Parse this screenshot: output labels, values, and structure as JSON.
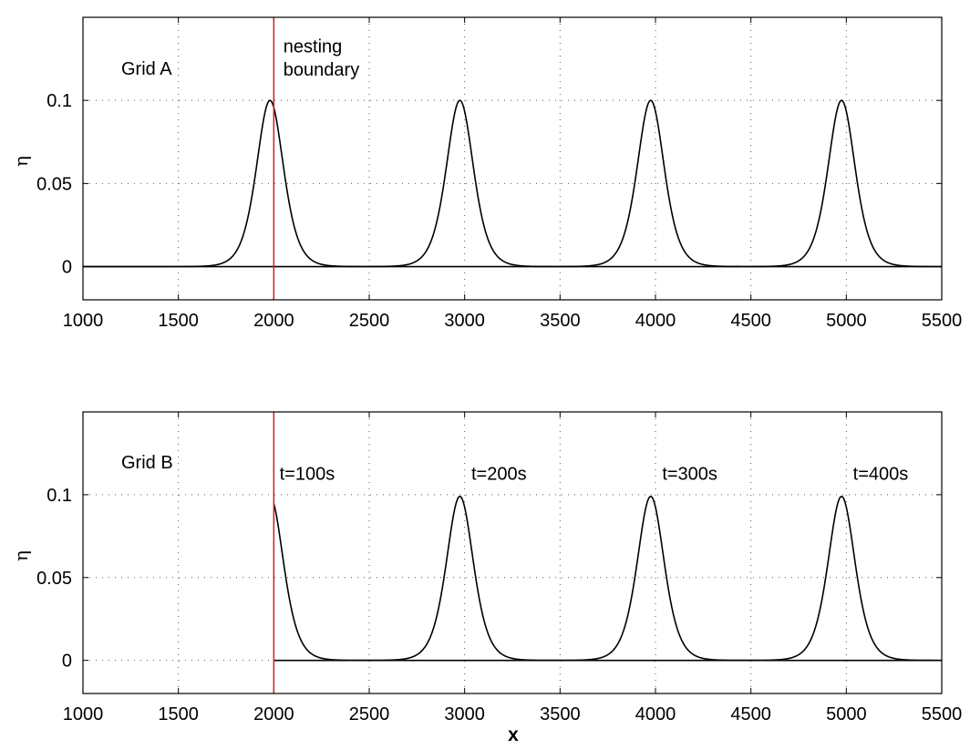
{
  "chart_data": [
    {
      "type": "line",
      "panel_label": "Grid A",
      "ylabel": "η",
      "xlabel": "",
      "xlim": [
        1000,
        5500
      ],
      "ylim": [
        -0.02,
        0.15
      ],
      "xticks": [
        1000,
        1500,
        2000,
        2500,
        3000,
        3500,
        4000,
        4500,
        5000,
        5500
      ],
      "yticks": [
        0,
        0.05,
        0.1
      ],
      "ytick_labels": [
        "0",
        "0.05",
        "0.1"
      ],
      "grid": true,
      "baseline": {
        "x": [
          1000,
          5500
        ],
        "y": [
          0,
          0
        ]
      },
      "nesting_boundary_x": 2000,
      "annotations": [
        {
          "text": "nesting",
          "x": 2050,
          "y": 0.129
        },
        {
          "text": "boundary",
          "x": 2050,
          "y": 0.115
        }
      ],
      "series": [
        {
          "type": "solitary_wave",
          "x_start": 1000,
          "x_end": 5500,
          "crest_x": [
            1980,
            2975,
            3975,
            4975
          ],
          "amplitude": 0.1,
          "halfwidth": 95,
          "baseline_y": 0
        }
      ]
    },
    {
      "type": "line",
      "panel_label": "Grid B",
      "ylabel": "η",
      "xlabel": "x",
      "xlim": [
        1000,
        5500
      ],
      "ylim": [
        -0.02,
        0.15
      ],
      "xticks": [
        1000,
        1500,
        2000,
        2500,
        3000,
        3500,
        4000,
        4500,
        5000,
        5500
      ],
      "yticks": [
        0,
        0.05,
        0.1
      ],
      "ytick_labels": [
        "0",
        "0.05",
        "0.1"
      ],
      "grid": true,
      "baseline": {
        "x": [
          2000,
          5500
        ],
        "y": [
          0,
          0
        ]
      },
      "nesting_boundary_x": 2000,
      "annotations": [
        {
          "text": "t=100s",
          "x": 2030,
          "y": 0.109
        },
        {
          "text": "t=200s",
          "x": 3035,
          "y": 0.109
        },
        {
          "text": "t=300s",
          "x": 4035,
          "y": 0.109
        },
        {
          "text": "t=400s",
          "x": 5035,
          "y": 0.109
        }
      ],
      "series": [
        {
          "type": "solitary_wave",
          "x_start": 2000,
          "x_end": 5500,
          "crest_x": [
            1980,
            2975,
            3975,
            4975
          ],
          "amplitude": 0.099,
          "halfwidth": 95,
          "baseline_y": 0
        }
      ]
    }
  ]
}
